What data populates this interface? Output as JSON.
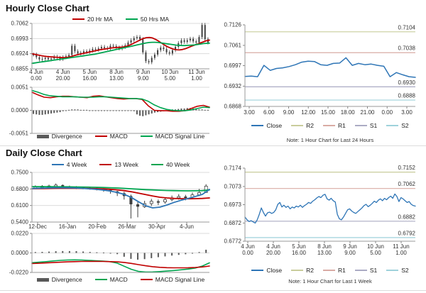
{
  "chart_data": [
    {
      "id": "hourly-price",
      "type": "candlestick",
      "title": "Hourly Close Chart",
      "ylim": [
        0.6855,
        0.7062
      ],
      "yticks": [
        "0.7062",
        "0.6993",
        "0.6924",
        "0.6855"
      ],
      "xticks": [
        [
          "4 Jun",
          "0.00"
        ],
        [
          "4 Jun",
          "20.00"
        ],
        [
          "5 Jun",
          "16.00"
        ],
        [
          "8 Jun",
          "13.00"
        ],
        [
          "9 Jun",
          "9.00"
        ],
        [
          "10 Jun",
          "5.00"
        ],
        [
          "11 Jun",
          "1.00"
        ]
      ],
      "wick": 0.0009,
      "candles_close": [
        0.692,
        0.6908,
        0.6898,
        0.69,
        0.6905,
        0.6898,
        0.6902,
        0.691,
        0.6905,
        0.69,
        0.6908,
        0.6912,
        0.6918,
        0.696,
        0.6935,
        0.6925,
        0.6928,
        0.6935,
        0.6932,
        0.6938,
        0.6945,
        0.6942,
        0.6948,
        0.6955,
        0.695,
        0.6948,
        0.696,
        0.6958,
        0.6952,
        0.6948,
        0.6955,
        0.6962,
        0.6975,
        0.6985,
        0.6995,
        0.7,
        0.699,
        0.693,
        0.689,
        0.6885,
        0.6905,
        0.692,
        0.694,
        0.6952,
        0.6945,
        0.693,
        0.6925,
        0.694,
        0.6955,
        0.6972,
        0.6985,
        0.6978,
        0.6985,
        0.6992,
        0.698,
        0.6975,
        0.7,
        0.7055,
        0.699,
        0.6975
      ],
      "series": [
        {
          "name": "20 Hr MA",
          "color": "#C00000",
          "width": 1.8,
          "values": [
            0.6924,
            0.6921,
            0.6918,
            0.6915,
            0.6913,
            0.6911,
            0.691,
            0.6909,
            0.6908,
            0.6907,
            0.6906,
            0.6906,
            0.6908,
            0.6911,
            0.6915,
            0.6919,
            0.6922,
            0.6925,
            0.6928,
            0.6931,
            0.6934,
            0.6937,
            0.694,
            0.6943,
            0.6945,
            0.6947,
            0.6949,
            0.6951,
            0.6952,
            0.6953,
            0.6954,
            0.6956,
            0.696,
            0.6966,
            0.6973,
            0.698,
            0.6987,
            0.6993,
            0.6997,
            0.6998,
            0.6996,
            0.699,
            0.6982,
            0.6973,
            0.6964,
            0.6956,
            0.695,
            0.6945,
            0.6942,
            0.6941,
            0.6943,
            0.6947,
            0.6952,
            0.6958,
            0.6963,
            0.6968,
            0.6973,
            0.6978,
            0.6983,
            0.6986
          ]
        },
        {
          "name": "50 Hrs MA",
          "color": "#00A550",
          "width": 1.8,
          "values": [
            0.688,
            0.6882,
            0.6884,
            0.6886,
            0.6888,
            0.689,
            0.6892,
            0.6894,
            0.6896,
            0.6898,
            0.69,
            0.6902,
            0.6904,
            0.6906,
            0.6908,
            0.691,
            0.6912,
            0.6914,
            0.6916,
            0.6918,
            0.692,
            0.6922,
            0.6925,
            0.6928,
            0.6931,
            0.6934,
            0.6937,
            0.694,
            0.6943,
            0.6946,
            0.6949,
            0.6952,
            0.6955,
            0.6958,
            0.6961,
            0.6964,
            0.6967,
            0.697,
            0.6973,
            0.6975,
            0.6976,
            0.6976,
            0.6975,
            0.6973,
            0.6971,
            0.6969,
            0.6967,
            0.6965,
            0.6963,
            0.6962,
            0.6961,
            0.6961,
            0.6962,
            0.6963,
            0.6964,
            0.6966,
            0.6968,
            0.697,
            0.6971,
            0.6972
          ]
        }
      ],
      "legend": [
        {
          "label": "20 Hr MA",
          "color": "#C00000"
        },
        {
          "label": "50 Hrs MA",
          "color": "#00A550"
        }
      ]
    },
    {
      "id": "hourly-macd",
      "type": "macd",
      "ylim": [
        -0.0051,
        0.0051
      ],
      "yticks": [
        "0.0051",
        "0.0000",
        "-0.0051"
      ],
      "bar_color": "#595959",
      "bars": [
        -0.0008,
        -0.0009,
        -0.001,
        -0.001,
        -0.0009,
        -0.0008,
        -0.0007,
        -0.0006,
        -0.0005,
        -0.0004,
        -0.0002,
        -0.0001,
        0.0001,
        0.0002,
        0.0002,
        0.0002,
        0.0001,
        0.0001,
        0.0001,
        0.0,
        0.0,
        -0.0001,
        -0.0001,
        -0.0001,
        0.0,
        0.0,
        -0.0001,
        -0.0001,
        -0.0001,
        -0.0001,
        -0.0001,
        0.0,
        0.0,
        -0.0001,
        -0.0002,
        -0.0009,
        -0.0012,
        -0.0013,
        -0.0011,
        -0.0009,
        -0.0007,
        -0.0005,
        -0.0004,
        -0.0003,
        -0.0002,
        -0.0001,
        0.0001,
        0.0002,
        0.0002,
        0.0003,
        0.0004,
        0.0004,
        0.0005,
        0.0005,
        0.0004,
        0.0003,
        0.0002,
        0.0002,
        0.0001,
        0.0001
      ],
      "series": [
        {
          "name": "MACD",
          "color": "#C00000",
          "width": 1.6,
          "values": [
            0.004,
            0.0034,
            0.0029,
            0.0028,
            0.003,
            0.0031,
            0.0031,
            0.003,
            0.0029,
            0.0028,
            0.0031,
            0.0032,
            0.003,
            0.0028,
            0.0026,
            0.0025,
            0.0026,
            0.0026,
            0.0024,
            0.001,
            0.0,
            -0.0001,
            -0.0001,
            -0.0002,
            -0.0002,
            -0.0001,
            0.0004,
            0.0009,
            0.0011,
            0.0007
          ]
        },
        {
          "name": "MACD Signal Line",
          "color": "#00A550",
          "width": 1.6,
          "values": [
            0.0044,
            0.004,
            0.0035,
            0.0032,
            0.0031,
            0.003,
            0.003,
            0.003,
            0.0029,
            0.0029,
            0.0029,
            0.003,
            0.003,
            0.0029,
            0.0028,
            0.0027,
            0.0026,
            0.0026,
            0.0025,
            0.002,
            0.0012,
            0.0006,
            0.0002,
            0.0,
            -0.0001,
            -0.0001,
            0.0001,
            0.0004,
            0.0007,
            0.0006
          ]
        }
      ],
      "legend": [
        {
          "label": "Divergence",
          "color": "#595959"
        },
        {
          "label": "MACD",
          "color": "#C00000"
        },
        {
          "label": "MACD Signal Line",
          "color": "#00A550"
        }
      ]
    },
    {
      "id": "pivot-24h",
      "type": "line",
      "ylim": [
        0.6868,
        0.7126
      ],
      "yticks": [
        "0.7126",
        "0.7061",
        "0.6997",
        "0.6932",
        "0.6868"
      ],
      "xticks": [
        "3.00",
        "6.00",
        "9.00",
        "12.00",
        "15.00",
        "18.00",
        "21.00",
        "0.00",
        "3.00"
      ],
      "grid": false,
      "pivots": [
        {
          "name": "R2",
          "value": 0.7104,
          "label": "0.7104",
          "color": "#C9CD9C"
        },
        {
          "name": "R1",
          "value": 0.7038,
          "label": "0.7038",
          "color": "#D9ABA4"
        },
        {
          "name": "S1",
          "value": 0.693,
          "label": "0.6930",
          "color": "#ABABC4"
        },
        {
          "name": "S2",
          "value": 0.6888,
          "label": "0.6888",
          "color": "#9FD2DB"
        }
      ],
      "series": [
        {
          "name": "Close",
          "color": "#2E75B6",
          "width": 1.5,
          "values": [
            0.6963,
            0.6964,
            0.6962,
            0.6998,
            0.6982,
            0.6988,
            0.699,
            0.6994,
            0.7,
            0.7008,
            0.7011,
            0.701,
            0.7,
            0.6998,
            0.7004,
            0.7005,
            0.7022,
            0.6998,
            0.7004,
            0.7,
            0.7002,
            0.6998,
            0.6995,
            0.6962,
            0.6975,
            0.6968,
            0.6962,
            0.696
          ]
        }
      ],
      "legend": [
        {
          "label": "Close",
          "color": "#2E75B6"
        },
        {
          "label": "R2",
          "color": "#C9CD9C"
        },
        {
          "label": "R1",
          "color": "#D9ABA4"
        },
        {
          "label": "S1",
          "color": "#ABABC4"
        },
        {
          "label": "S2",
          "color": "#9FD2DB"
        }
      ],
      "note": "Note: 1 Hour Chart for Last 24 Hours"
    },
    {
      "id": "daily-price",
      "type": "ohlc",
      "title": "Daily Close Chart",
      "ylim": [
        0.54,
        0.75
      ],
      "yticks": [
        "0.7500",
        "0.6800",
        "0.6100",
        "0.5400"
      ],
      "xticks": [
        "12-Dec",
        "16-Jan",
        "20-Feb",
        "26-Mar",
        "30-Apr",
        "4-Jun"
      ],
      "bars_hlc": [
        [
          0.695,
          0.686,
          0.69
        ],
        [
          0.696,
          0.687,
          0.6915
        ],
        [
          0.698,
          0.688,
          0.6925
        ],
        [
          0.703,
          0.69,
          0.6965
        ],
        [
          0.699,
          0.686,
          0.6905
        ],
        [
          0.694,
          0.684,
          0.689
        ],
        [
          0.692,
          0.68,
          0.6855
        ],
        [
          0.69,
          0.679,
          0.684
        ],
        [
          0.688,
          0.677,
          0.682
        ],
        [
          0.686,
          0.674,
          0.68
        ],
        [
          0.683,
          0.668,
          0.676
        ],
        [
          0.679,
          0.66,
          0.67
        ],
        [
          0.672,
          0.65,
          0.662
        ],
        [
          0.668,
          0.635,
          0.65
        ],
        [
          0.656,
          0.555,
          0.615
        ],
        [
          0.625,
          0.56,
          0.605
        ],
        [
          0.63,
          0.6,
          0.618
        ],
        [
          0.638,
          0.608,
          0.628
        ],
        [
          0.635,
          0.612,
          0.625
        ],
        [
          0.645,
          0.618,
          0.635
        ],
        [
          0.652,
          0.628,
          0.642
        ],
        [
          0.658,
          0.635,
          0.648
        ],
        [
          0.655,
          0.632,
          0.645
        ],
        [
          0.665,
          0.64,
          0.655
        ],
        [
          0.68,
          0.65,
          0.665
        ],
        [
          0.7,
          0.67,
          0.692
        ]
      ],
      "series": [
        {
          "name": "40 Week",
          "color": "#00A550",
          "width": 1.8,
          "values": [
            0.69,
            0.6898,
            0.6896,
            0.6894,
            0.6892,
            0.689,
            0.6886,
            0.6882,
            0.6876,
            0.687,
            0.6862,
            0.6852,
            0.684,
            0.6825,
            0.6808,
            0.679,
            0.6772,
            0.6758,
            0.6746,
            0.6736,
            0.6728,
            0.6722,
            0.672,
            0.6722,
            0.673,
            0.676
          ]
        },
        {
          "name": "13 Week",
          "color": "#C00000",
          "width": 1.8,
          "values": [
            0.681,
            0.6815,
            0.682,
            0.6825,
            0.683,
            0.683,
            0.6828,
            0.6825,
            0.682,
            0.6812,
            0.68,
            0.6785,
            0.6762,
            0.673,
            0.668,
            0.662,
            0.656,
            0.65,
            0.645,
            0.642,
            0.64,
            0.639,
            0.6385,
            0.639,
            0.64,
            0.642
          ]
        },
        {
          "name": "4 Week",
          "color": "#2E75B6",
          "width": 1.8,
          "values": [
            0.682,
            0.683,
            0.684,
            0.6848,
            0.6852,
            0.685,
            0.6842,
            0.6828,
            0.6808,
            0.6785,
            0.6755,
            0.6715,
            0.6655,
            0.657,
            0.644,
            0.626,
            0.609,
            0.6,
            0.603,
            0.612,
            0.623,
            0.632,
            0.64,
            0.648,
            0.657,
            0.678
          ]
        }
      ],
      "legend": [
        {
          "label": "4 Week",
          "color": "#2E75B6"
        },
        {
          "label": "13 Week",
          "color": "#C00000"
        },
        {
          "label": "40 Week",
          "color": "#00A550"
        }
      ]
    },
    {
      "id": "daily-macd",
      "type": "macd",
      "ylim": [
        -0.022,
        0.022
      ],
      "yticks": [
        "0.0220",
        "0.0000",
        "-0.0220"
      ],
      "bar_color": "#595959",
      "bars": [
        0.001,
        0.0012,
        0.0015,
        0.0019,
        0.0021,
        0.0021,
        0.002,
        0.0016,
        0.0011,
        0.0007,
        0.0004,
        0.0,
        -0.0014,
        -0.0043,
        -0.0067,
        -0.0076,
        -0.007,
        -0.0059,
        -0.0048,
        -0.0039,
        -0.003,
        -0.0022,
        -0.0015,
        -0.0006,
        0.001,
        0.0036
      ],
      "series": [
        {
          "name": "MACD",
          "color": "#00A550",
          "width": 1.6,
          "values": [
            -0.011,
            -0.0105,
            -0.0098,
            -0.009,
            -0.0084,
            -0.008,
            -0.0078,
            -0.008,
            -0.0084,
            -0.0088,
            -0.0092,
            -0.0098,
            -0.0115,
            -0.015,
            -0.0185,
            -0.0208,
            -0.0215,
            -0.0214,
            -0.021,
            -0.0205,
            -0.0198,
            -0.019,
            -0.0182,
            -0.017,
            -0.0148,
            -0.0112
          ]
        },
        {
          "name": "MACD Signal Line",
          "color": "#C00000",
          "width": 1.6,
          "values": [
            -0.012,
            -0.0117,
            -0.0113,
            -0.0109,
            -0.0105,
            -0.0101,
            -0.0098,
            -0.0096,
            -0.0095,
            -0.0095,
            -0.0096,
            -0.0098,
            -0.0101,
            -0.0107,
            -0.0118,
            -0.0132,
            -0.0145,
            -0.0155,
            -0.0162,
            -0.0166,
            -0.0168,
            -0.0168,
            -0.0167,
            -0.0164,
            -0.0158,
            -0.0148
          ]
        }
      ],
      "legend": [
        {
          "label": "Divergence",
          "color": "#595959"
        },
        {
          "label": "MACD",
          "color": "#00A550"
        },
        {
          "label": "MACD Signal Line",
          "color": "#C00000"
        }
      ]
    },
    {
      "id": "pivot-1w",
      "type": "line",
      "ylim": [
        0.6772,
        0.7174
      ],
      "yticks": [
        "0.7174",
        "0.7073",
        "0.6973",
        "0.6872",
        "0.6772"
      ],
      "xticks": [
        [
          "4 Jun",
          "0.00"
        ],
        [
          "4 Jun",
          "20.00"
        ],
        [
          "5 Jun",
          "16.00"
        ],
        [
          "8 Jun",
          "13.00"
        ],
        [
          "9 Jun",
          "9.00"
        ],
        [
          "10 Jun",
          "5.00"
        ],
        [
          "11 Jun",
          "1.00"
        ]
      ],
      "grid": false,
      "pivots": [
        {
          "name": "R2",
          "value": 0.7152,
          "label": "0.7152",
          "color": "#C9CD9C"
        },
        {
          "name": "R1",
          "value": 0.7062,
          "label": "0.7062",
          "color": "#D9ABA4"
        },
        {
          "name": "S1",
          "value": 0.6882,
          "label": "0.6882",
          "color": "#ABABC4"
        },
        {
          "name": "S2",
          "value": 0.6792,
          "label": "0.6792",
          "color": "#9FD2DB"
        }
      ],
      "series": [
        {
          "name": "Close",
          "color": "#2E75B6",
          "width": 1.3,
          "values": [
            0.6905,
            0.689,
            0.688,
            0.6885,
            0.6878,
            0.6872,
            0.689,
            0.692,
            0.6955,
            0.693,
            0.691,
            0.6928,
            0.6932,
            0.6925,
            0.693,
            0.6945,
            0.6975,
            0.6985,
            0.696,
            0.697,
            0.6958,
            0.6965,
            0.695,
            0.696,
            0.6955,
            0.6965,
            0.696,
            0.697,
            0.6958,
            0.6968,
            0.6975,
            0.6985,
            0.698,
            0.6992,
            0.7,
            0.701,
            0.7018,
            0.7012,
            0.7025,
            0.703,
            0.7005,
            0.6998,
            0.7008,
            0.6995,
            0.6988,
            0.692,
            0.6895,
            0.689,
            0.6905,
            0.6925,
            0.6945,
            0.695,
            0.6938,
            0.693,
            0.6925,
            0.6935,
            0.6945,
            0.6955,
            0.6968,
            0.6975,
            0.6962,
            0.697,
            0.698,
            0.6992,
            0.6985,
            0.6998,
            0.7005,
            0.6995,
            0.7008,
            0.7,
            0.7012,
            0.702,
            0.7008,
            0.7032,
            0.7018,
            0.699,
            0.7012,
            0.7005,
            0.6995,
            0.6985,
            0.699,
            0.6975,
            0.6968,
            0.6965
          ]
        }
      ],
      "legend": [
        {
          "label": "Close",
          "color": "#2E75B6"
        },
        {
          "label": "R2",
          "color": "#C9CD9C"
        },
        {
          "label": "R1",
          "color": "#D9ABA4"
        },
        {
          "label": "S1",
          "color": "#ABABC4"
        },
        {
          "label": "S2",
          "color": "#9FD2DB"
        }
      ],
      "note": "Note: 1 Hour Chart for Last 1 Week"
    }
  ]
}
